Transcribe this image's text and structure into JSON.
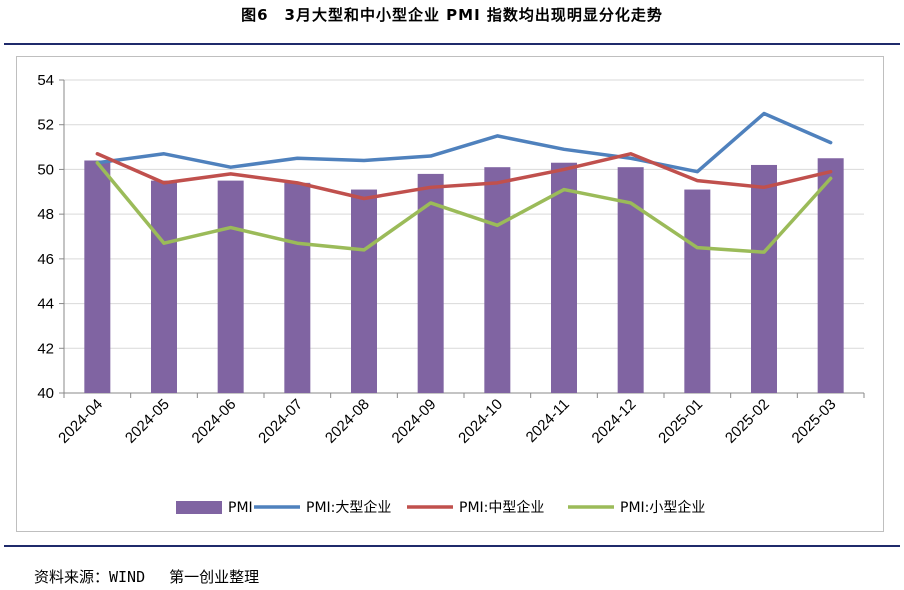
{
  "header": {
    "title": "图6　3月大型和中小型企业 PMI 指数均出现明显分化走势"
  },
  "footer": {
    "source": "资料来源：WIND　 第一创业整理"
  },
  "colors": {
    "bar": "#8064a2",
    "large": "#4f81bd",
    "medium": "#c0504d",
    "small": "#9bbb59",
    "grid": "#d9d9d9",
    "rule": "#1f2a6b"
  },
  "chart_data": {
    "type": "bar",
    "title": "3月大型和中小型企业 PMI 指数均出现明显分化走势",
    "xlabel": "",
    "ylabel": "",
    "ylim": [
      40,
      54
    ],
    "yticks": [
      40,
      42,
      44,
      46,
      48,
      50,
      52,
      54
    ],
    "grid": true,
    "legend_position": "bottom",
    "categories": [
      "2024-04",
      "2024-05",
      "2024-06",
      "2024-07",
      "2024-08",
      "2024-09",
      "2024-10",
      "2024-11",
      "2024-12",
      "2025-01",
      "2025-02",
      "2025-03"
    ],
    "series": [
      {
        "name": "PMI",
        "type": "bar",
        "color": "#8064a2",
        "values": [
          50.4,
          49.5,
          49.5,
          49.4,
          49.1,
          49.8,
          50.1,
          50.3,
          50.1,
          49.1,
          50.2,
          50.5
        ]
      },
      {
        "name": "PMI:大型企业",
        "type": "line",
        "color": "#4f81bd",
        "values": [
          50.3,
          50.7,
          50.1,
          50.5,
          50.4,
          50.6,
          51.5,
          50.9,
          50.5,
          49.9,
          52.5,
          51.2
        ]
      },
      {
        "name": "PMI:中型企业",
        "type": "line",
        "color": "#c0504d",
        "values": [
          50.7,
          49.4,
          49.8,
          49.4,
          48.7,
          49.2,
          49.4,
          50.0,
          50.7,
          49.5,
          49.2,
          49.9
        ]
      },
      {
        "name": "PMI:小型企业",
        "type": "line",
        "color": "#9bbb59",
        "values": [
          50.3,
          46.7,
          47.4,
          46.7,
          46.4,
          48.5,
          47.5,
          49.1,
          48.5,
          46.5,
          46.3,
          49.6
        ]
      }
    ]
  }
}
